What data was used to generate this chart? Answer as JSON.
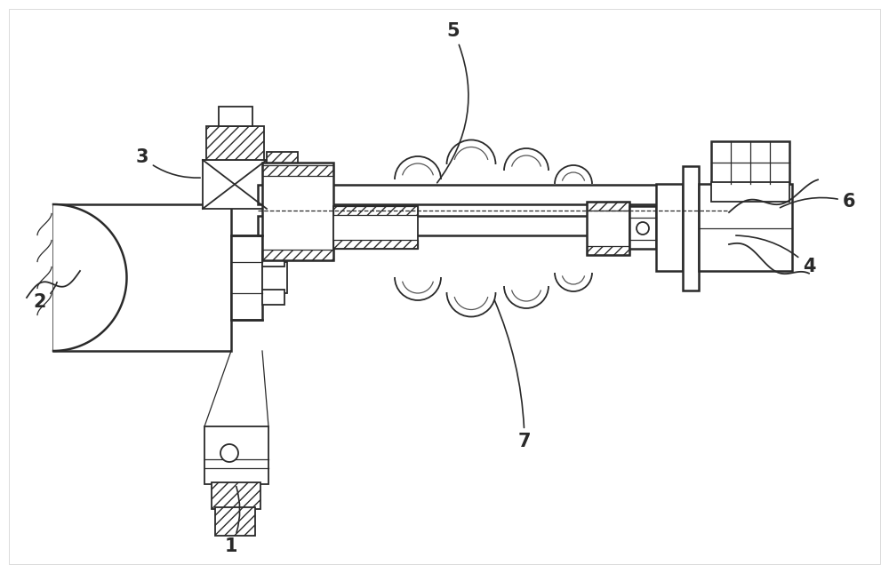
{
  "bg_color": "#ffffff",
  "line_color": "#2a2a2a",
  "fig_width": 10.0,
  "fig_height": 6.45,
  "dpi": 100,
  "label_fontsize": 15
}
